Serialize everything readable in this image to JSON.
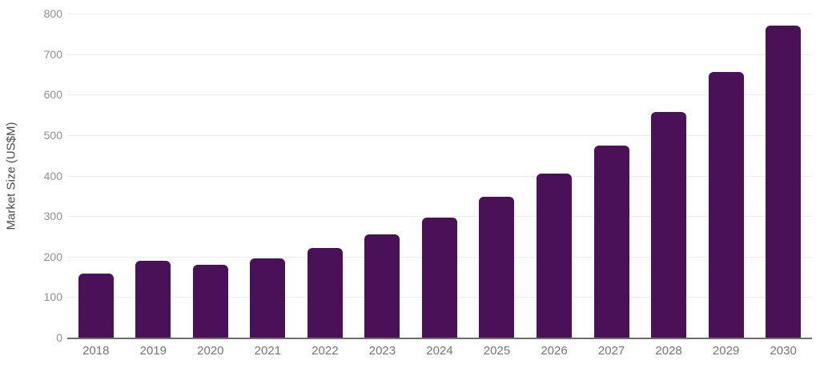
{
  "chart_data": {
    "type": "bar",
    "title": "",
    "xlabel": "",
    "ylabel": "Market Size (US$M)",
    "categories": [
      "2018",
      "2019",
      "2020",
      "2021",
      "2022",
      "2023",
      "2024",
      "2025",
      "2026",
      "2027",
      "2028",
      "2029",
      "2030"
    ],
    "values": [
      158,
      190,
      180,
      195,
      222,
      254,
      297,
      347,
      405,
      475,
      557,
      655,
      770
    ],
    "ylim": [
      0,
      800
    ],
    "yticks": [
      0,
      100,
      200,
      300,
      400,
      500,
      600,
      700,
      800
    ],
    "grid": true,
    "legend": false,
    "colors": {
      "bar": "#4a1158",
      "gridline": "#ededed",
      "axis_line": "#6e6e6e",
      "y_tick_label": "#8f8f8f",
      "x_tick_label": "#757575",
      "y_axis_title": "#4a4a4a",
      "background": "#ffffff"
    }
  }
}
